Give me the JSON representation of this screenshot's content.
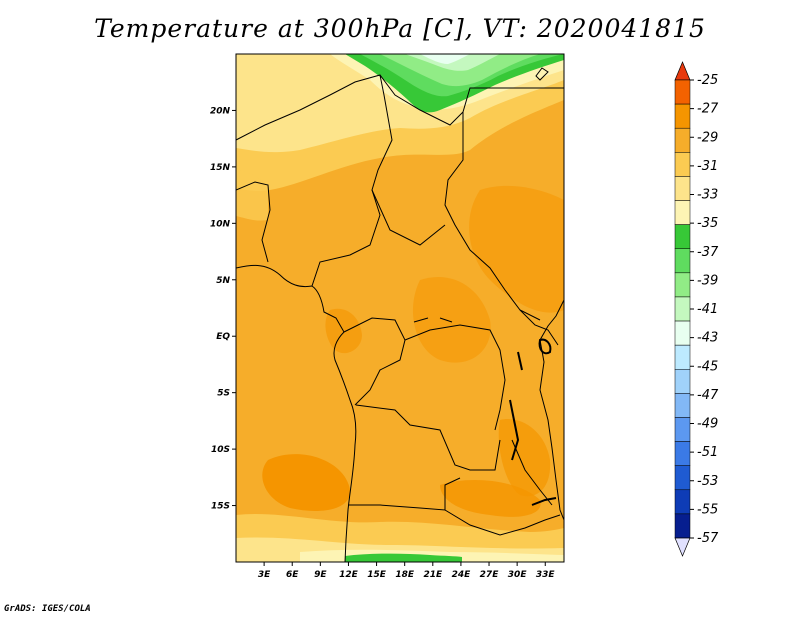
{
  "title": "Temperature at 300hPa [C], VT: 2020041815",
  "credit": "GrADS: IGES/COLA",
  "map": {
    "lon_range": [
      0,
      35
    ],
    "lat_range": [
      -20,
      25
    ],
    "x_ticks": [
      "3E",
      "6E",
      "9E",
      "12E",
      "15E",
      "18E",
      "21E",
      "24E",
      "27E",
      "30E",
      "33E"
    ],
    "x_tick_values": [
      3,
      6,
      9,
      12,
      15,
      18,
      21,
      24,
      27,
      30,
      33
    ],
    "y_ticks": [
      "20N",
      "15N",
      "10N",
      "5N",
      "EQ",
      "5S",
      "10S",
      "15S"
    ],
    "y_tick_values": [
      20,
      15,
      10,
      5,
      0,
      -5,
      -10,
      -15
    ]
  },
  "colorbar": {
    "labels": [
      "-25",
      "-27",
      "-29",
      "-31",
      "-33",
      "-35",
      "-37",
      "-39",
      "-41",
      "-43",
      "-45",
      "-47",
      "-49",
      "-51",
      "-53",
      "-55",
      "-57"
    ],
    "colors": [
      "#e8390e",
      "#f36200",
      "#f59500",
      "#f6ad2a",
      "#fbcb52",
      "#fde48b",
      "#fdf4b4",
      "#37c837",
      "#5fdc5f",
      "#91ec86",
      "#c4f8bf",
      "#e8fff0",
      "#bdeaff",
      "#a0d2fa",
      "#82b8f6",
      "#5c98f0",
      "#3b7ae6",
      "#1f5bd2",
      "#0e3cb6",
      "#061e8f",
      "#e1e1ff"
    ]
  }
}
